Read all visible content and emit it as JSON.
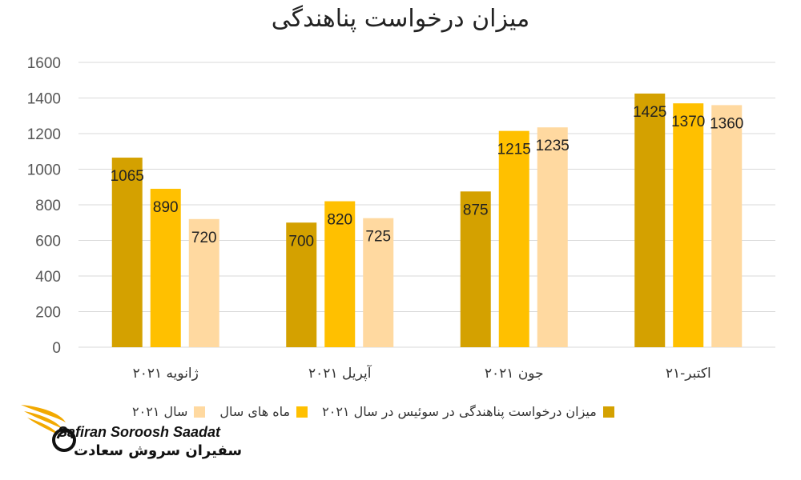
{
  "colors": {
    "series1": "#D4A100",
    "series2": "#FFC000",
    "series3": "#FFD9A0",
    "grid": "#d9d9d9"
  },
  "legend": [
    {
      "label": "میزان درخواست پناهندگی در سوئیس در سال ۲۰۲۱",
      "color": "#D4A100"
    },
    {
      "label": "ماه های سال",
      "color": "#FFC000"
    },
    {
      "label": "سال ۲۰۲۱",
      "color": "#FFD9A0"
    }
  ],
  "logo": {
    "latin": "Safiran Soroosh Saadat",
    "persian": "سفیران سروش سعادت"
  },
  "chart_data": {
    "type": "bar",
    "title": "میزان درخواست پناهندگی",
    "categories": [
      "ژانویه ۲۰۲۱",
      "آپریل ۲۰۲۱",
      "جون ۲۰۲۱",
      "اکتبر-۲۱"
    ],
    "series": [
      {
        "name": "میزان درخواست پناهندگی در سوئیس در سال ۲۰۲۱",
        "values": [
          1065,
          700,
          875,
          1425
        ],
        "labels": [
          "1065",
          "700",
          "875",
          "1425"
        ]
      },
      {
        "name": "ماه های سال",
        "values": [
          890,
          820,
          1215,
          1370
        ],
        "labels": [
          "890",
          "820",
          "1215",
          "1370"
        ]
      },
      {
        "name": "سال ۲۰۲۱",
        "values": [
          720,
          725,
          1235,
          1360
        ],
        "labels": [
          "720",
          "725",
          "1235",
          "1360"
        ]
      }
    ],
    "yticks": [
      "0",
      "200",
      "400",
      "600",
      "800",
      "1000",
      "1200",
      "1400",
      "1600"
    ],
    "ylim": [
      0,
      1600
    ],
    "grid": true,
    "legend_position": "bottom"
  }
}
